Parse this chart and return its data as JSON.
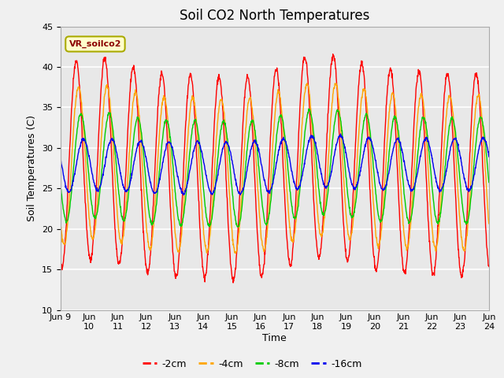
{
  "title": "Soil CO2 North Temperatures",
  "xlabel": "Time",
  "ylabel": "Soil Temperatures (C)",
  "ylim": [
    10,
    45
  ],
  "legend_label": "VR_soilco2",
  "series_labels": [
    "-2cm",
    "-4cm",
    "-8cm",
    "-16cm"
  ],
  "series_colors": [
    "#ff0000",
    "#ffa500",
    "#00cc00",
    "#0000ee"
  ],
  "xtick_labels": [
    "Jun 9",
    "Jun\n10",
    "Jun\n11",
    "Jun\n12",
    "Jun\n13",
    "Jun\n14",
    "Jun\n15",
    "Jun\n16",
    "Jun\n17",
    "Jun\n18",
    "Jun\n19",
    "Jun\n20",
    "Jun\n21",
    "Jun\n22",
    "Jun\n23",
    "Jun\n24"
  ],
  "title_fontsize": 12,
  "axis_label_fontsize": 9,
  "tick_fontsize": 8,
  "fig_bg": "#f0f0f0",
  "ax_bg": "#e8e8e8"
}
